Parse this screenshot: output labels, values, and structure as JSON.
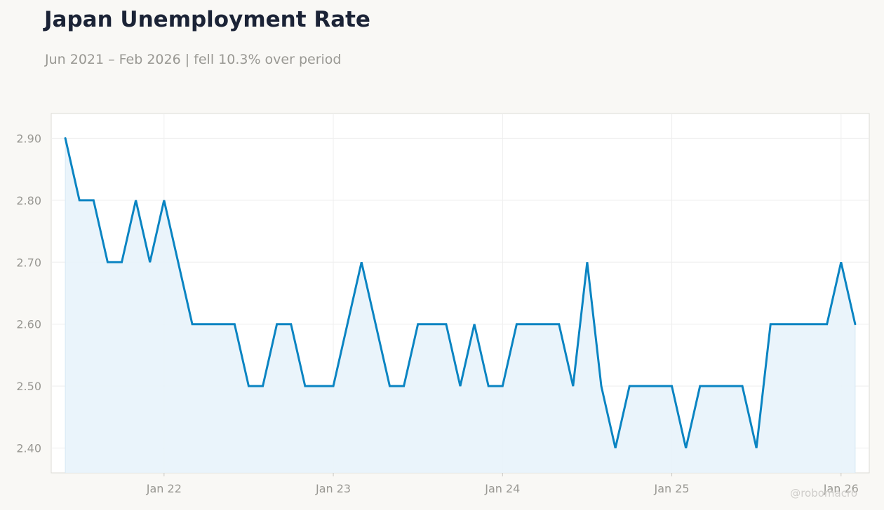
{
  "header": {
    "title": "Japan Unemployment Rate",
    "subtitle": "Jun 2021 – Feb 2026 | fell 10.3% over period"
  },
  "watermark": "@robomacro",
  "colors": {
    "line": "#0a84c2",
    "fill": "#e8f3fb",
    "grid": "#eeeeee",
    "tick_text": "#999893",
    "plot_bg": "#ffffff",
    "plot_border": "#dcdbd6"
  },
  "chart_data": {
    "type": "area",
    "title": "Japan Unemployment Rate",
    "xlabel": "",
    "ylabel": "",
    "grid": true,
    "legend": "none",
    "x_ticks": [
      {
        "date": "2022-01",
        "label": "Jan 22"
      },
      {
        "date": "2023-01",
        "label": "Jan 23"
      },
      {
        "date": "2024-01",
        "label": "Jan 24"
      },
      {
        "date": "2025-01",
        "label": "Jan 25"
      },
      {
        "date": "2026-01",
        "label": "Jan 26"
      }
    ],
    "y_ticks": [
      "2.40",
      "2.50",
      "2.60",
      "2.70",
      "2.80",
      "2.90"
    ],
    "xlim": [
      "2021-05",
      "2026-03"
    ],
    "ylim": [
      2.36,
      2.94
    ],
    "series": [
      {
        "x": [
          "2021-06",
          "2021-07",
          "2021-08",
          "2021-09",
          "2021-10",
          "2021-11",
          "2021-12",
          "2022-01",
          "2022-02",
          "2022-03",
          "2022-04",
          "2022-05",
          "2022-06",
          "2022-07",
          "2022-08",
          "2022-09",
          "2022-10",
          "2022-11",
          "2022-12",
          "2023-01",
          "2023-02",
          "2023-03",
          "2023-04",
          "2023-05",
          "2023-06",
          "2023-07",
          "2023-08",
          "2023-09",
          "2023-10",
          "2023-11",
          "2023-12",
          "2024-01",
          "2024-02",
          "2024-03",
          "2024-04",
          "2024-05",
          "2024-06",
          "2024-07",
          "2024-08",
          "2024-09",
          "2024-10",
          "2024-11",
          "2024-12",
          "2025-01",
          "2025-02",
          "2025-03",
          "2025-04",
          "2025-05",
          "2025-06",
          "2025-07",
          "2025-08",
          "2025-09",
          "2025-10",
          "2025-11",
          "2025-12",
          "2026-01",
          "2026-02"
        ],
        "values": [
          2.9,
          2.8,
          2.8,
          2.7,
          2.7,
          2.8,
          2.7,
          2.8,
          2.7,
          2.6,
          2.6,
          2.6,
          2.6,
          2.5,
          2.5,
          2.6,
          2.6,
          2.5,
          2.5,
          2.5,
          2.6,
          2.7,
          2.6,
          2.5,
          2.5,
          2.6,
          2.6,
          2.6,
          2.5,
          2.6,
          2.5,
          2.5,
          2.6,
          2.6,
          2.6,
          2.6,
          2.5,
          2.7,
          2.5,
          2.4,
          2.5,
          2.5,
          2.5,
          2.5,
          2.4,
          2.5,
          2.5,
          2.5,
          2.5,
          2.4,
          2.6,
          2.6,
          2.6,
          2.6,
          2.6,
          2.7,
          2.6
        ]
      }
    ]
  }
}
